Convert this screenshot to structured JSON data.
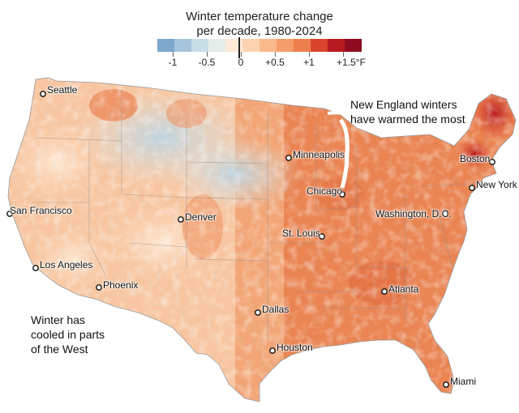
{
  "title": {
    "line1": "Winter temperature change",
    "line2": "per decade, 1980-2024"
  },
  "legend": {
    "colors": [
      "#7fa8cc",
      "#a6c4dc",
      "#c8dde6",
      "#e4ede9",
      "#fde9d6",
      "#fcd3b1",
      "#f9b98d",
      "#f49d6a",
      "#ee7f4d",
      "#d9452c",
      "#b81a22",
      "#8d0c1f"
    ],
    "ticks": [
      {
        "label": "-1",
        "value": -1
      },
      {
        "label": "-0.5",
        "value": -0.5
      },
      {
        "label": "0",
        "value": 0
      },
      {
        "label": "+0.5",
        "value": 0.5
      },
      {
        "label": "+1",
        "value": 1
      },
      {
        "label": "+1.5°F",
        "value": 1.5
      }
    ]
  },
  "cities": [
    {
      "name": "Seattle"
    },
    {
      "name": "San Francisco"
    },
    {
      "name": "Los Angeles"
    },
    {
      "name": "Phoenix"
    },
    {
      "name": "Denver"
    },
    {
      "name": "Minneapolis"
    },
    {
      "name": "Chicago"
    },
    {
      "name": "St. Louis"
    },
    {
      "name": "Dallas"
    },
    {
      "name": "Houston"
    },
    {
      "name": "Atlanta"
    },
    {
      "name": "Washington, D.C."
    },
    {
      "name": "New York"
    },
    {
      "name": "Boston"
    },
    {
      "name": "Miami"
    }
  ],
  "annotations": {
    "new_england_line1": "New England winters",
    "new_england_line2": "have warmed the most",
    "west_line1": "Winter has",
    "west_line2": "cooled in parts",
    "west_line3": "of the West"
  }
}
